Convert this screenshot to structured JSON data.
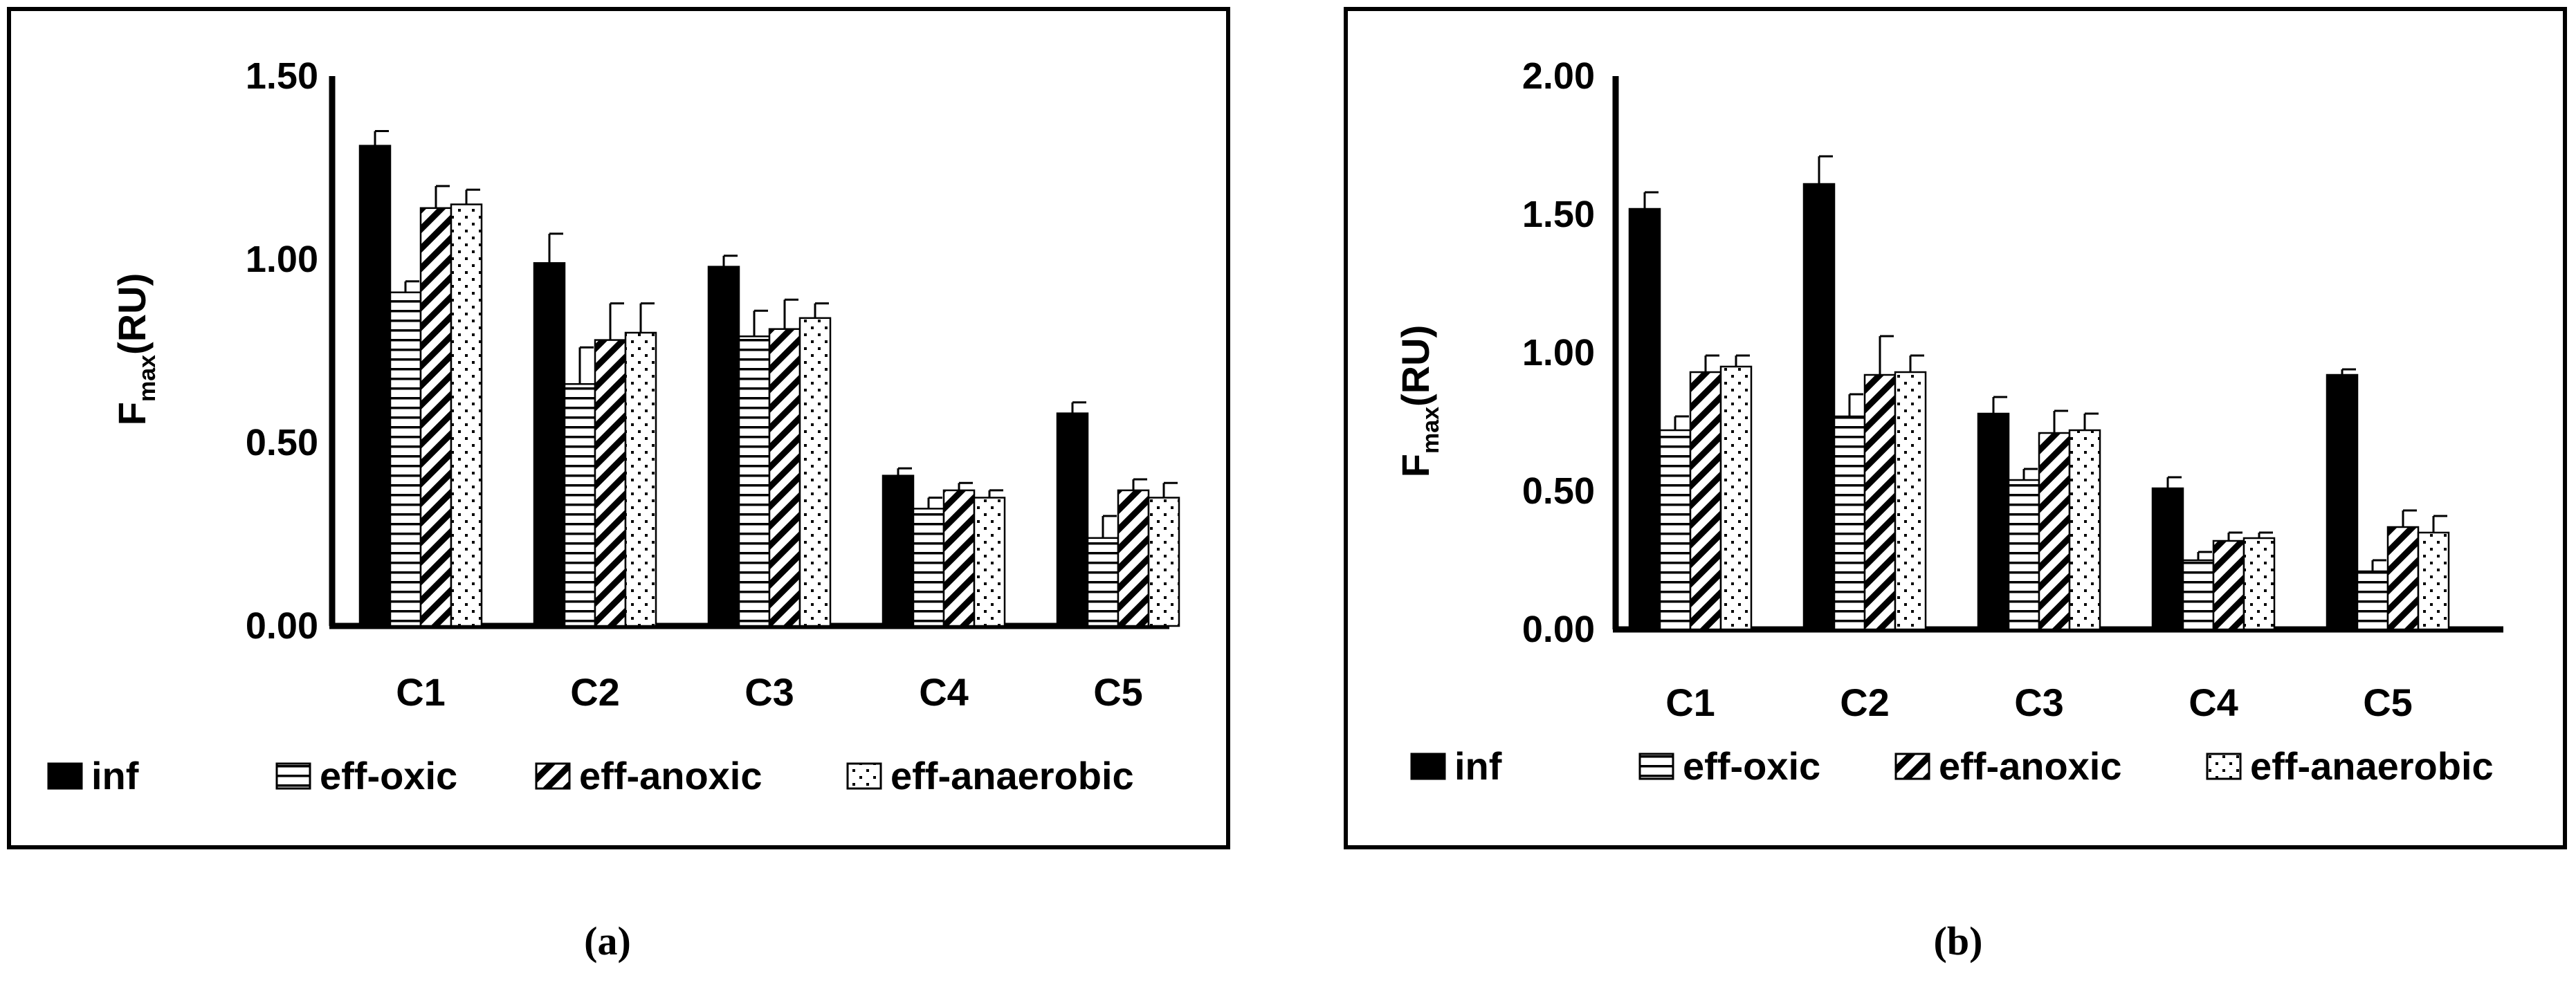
{
  "figure": {
    "panels": [
      {
        "label": "(a)"
      },
      {
        "label": "(b)"
      }
    ]
  },
  "chart_data": [
    {
      "type": "bar",
      "panel": "(a)",
      "title": "",
      "xlabel": "",
      "ylabel": "Fmax(RU)",
      "ylabel_main": "F",
      "ylabel_sub": "max",
      "ylabel_unit": "(RU)",
      "ylim": [
        0,
        1.5
      ],
      "yticks": [
        0,
        0.5,
        1.0,
        1.5
      ],
      "ytick_labels": [
        "0.00",
        "0.50",
        "1.00",
        "1.50"
      ],
      "categories": [
        "C1",
        "C2",
        "C3",
        "C4",
        "C5"
      ],
      "legend": "bottom",
      "series": [
        {
          "name": "inf",
          "pattern": "solid",
          "values": [
            1.31,
            0.99,
            0.98,
            0.41,
            0.58
          ],
          "errors": [
            0.04,
            0.08,
            0.03,
            0.02,
            0.03
          ]
        },
        {
          "name": "eff-oxic",
          "pattern": "horizontal-lines",
          "values": [
            0.91,
            0.66,
            0.79,
            0.32,
            0.24
          ],
          "errors": [
            0.03,
            0.1,
            0.07,
            0.03,
            0.06
          ]
        },
        {
          "name": "eff-anoxic",
          "pattern": "diagonal-stripes",
          "values": [
            1.14,
            0.78,
            0.81,
            0.37,
            0.37
          ],
          "errors": [
            0.06,
            0.1,
            0.08,
            0.02,
            0.03
          ]
        },
        {
          "name": "eff-anaerobic",
          "pattern": "dots",
          "values": [
            1.15,
            0.8,
            0.84,
            0.35,
            0.35
          ],
          "errors": [
            0.04,
            0.08,
            0.04,
            0.02,
            0.04
          ]
        }
      ]
    },
    {
      "type": "bar",
      "panel": "(b)",
      "title": "",
      "xlabel": "",
      "ylabel": "Fmax(RU)",
      "ylabel_main": "F",
      "ylabel_sub": "max",
      "ylabel_unit": "(RU)",
      "ylim": [
        0,
        2.0
      ],
      "yticks": [
        0,
        0.5,
        1.0,
        1.5,
        2.0
      ],
      "ytick_labels": [
        "0.00",
        "0.50",
        "1.00",
        "1.50",
        "2.00"
      ],
      "categories": [
        "C1",
        "C2",
        "C3",
        "C4",
        "C5"
      ],
      "legend": "bottom",
      "series": [
        {
          "name": "inf",
          "pattern": "solid",
          "values": [
            1.52,
            1.61,
            0.78,
            0.51,
            0.92
          ],
          "errors": [
            0.06,
            0.1,
            0.06,
            0.04,
            0.02
          ]
        },
        {
          "name": "eff-oxic",
          "pattern": "horizontal-lines",
          "values": [
            0.72,
            0.77,
            0.54,
            0.25,
            0.21
          ],
          "errors": [
            0.05,
            0.08,
            0.04,
            0.03,
            0.04
          ]
        },
        {
          "name": "eff-anoxic",
          "pattern": "diagonal-stripes",
          "values": [
            0.93,
            0.92,
            0.71,
            0.32,
            0.37
          ],
          "errors": [
            0.06,
            0.14,
            0.08,
            0.03,
            0.06
          ]
        },
        {
          "name": "eff-anaerobic",
          "pattern": "dots",
          "values": [
            0.95,
            0.93,
            0.72,
            0.33,
            0.35
          ],
          "errors": [
            0.04,
            0.06,
            0.06,
            0.02,
            0.06
          ]
        }
      ]
    }
  ]
}
